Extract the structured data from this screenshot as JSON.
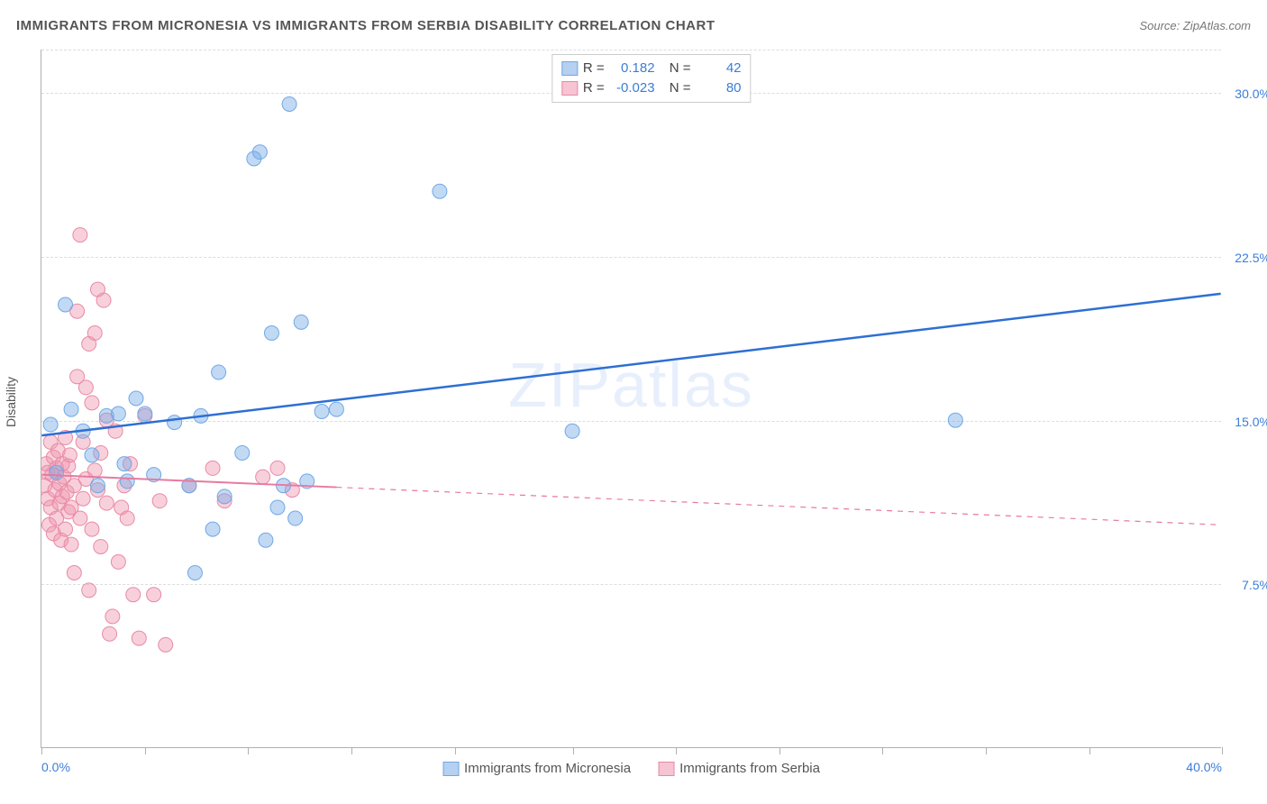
{
  "title": "IMMIGRANTS FROM MICRONESIA VS IMMIGRANTS FROM SERBIA DISABILITY CORRELATION CHART",
  "source": "Source: ZipAtlas.com",
  "ylabel": "Disability",
  "watermark": "ZIPatlas",
  "chart": {
    "type": "scatter",
    "xlim": [
      0,
      40
    ],
    "ylim": [
      0,
      32
    ],
    "x_ticks": [
      0,
      3.5,
      7,
      10.5,
      14,
      18,
      21.5,
      25,
      28.5,
      32,
      35.5,
      40
    ],
    "x_tick_labels": {
      "0": "0.0%",
      "40": "40.0%"
    },
    "y_gridlines": [
      7.5,
      15.0,
      22.5,
      30.0
    ],
    "y_tick_labels": [
      "7.5%",
      "15.0%",
      "22.5%",
      "30.0%"
    ],
    "background_color": "#ffffff",
    "grid_color": "#dddddd",
    "series": [
      {
        "name": "Immigrants from Micronesia",
        "color_fill": "rgba(120, 170, 230, 0.45)",
        "color_stroke": "#6fa8e6",
        "swatch_fill": "#b5d0f0",
        "swatch_border": "#6fa8e6",
        "marker_radius": 8,
        "r_value": "0.182",
        "n_value": "42",
        "trend": {
          "x1": 0,
          "y1": 14.3,
          "x2": 40,
          "y2": 20.8,
          "color": "#2d6fd4",
          "width": 2.5,
          "solid_until_x": 40
        },
        "points": [
          [
            0.3,
            14.8
          ],
          [
            0.5,
            12.6
          ],
          [
            0.8,
            20.3
          ],
          [
            1.0,
            15.5
          ],
          [
            1.4,
            14.5
          ],
          [
            1.7,
            13.4
          ],
          [
            1.9,
            12.0
          ],
          [
            2.2,
            15.2
          ],
          [
            2.6,
            15.3
          ],
          [
            2.9,
            12.2
          ],
          [
            2.8,
            13.0
          ],
          [
            3.2,
            16.0
          ],
          [
            3.5,
            15.3
          ],
          [
            3.8,
            12.5
          ],
          [
            4.5,
            14.9
          ],
          [
            5.0,
            12.0
          ],
          [
            5.2,
            8.0
          ],
          [
            5.4,
            15.2
          ],
          [
            5.8,
            10.0
          ],
          [
            6.0,
            17.2
          ],
          [
            6.2,
            11.5
          ],
          [
            6.8,
            13.5
          ],
          [
            7.2,
            27.0
          ],
          [
            7.4,
            27.3
          ],
          [
            7.6,
            9.5
          ],
          [
            7.8,
            19.0
          ],
          [
            8.0,
            11.0
          ],
          [
            8.2,
            12.0
          ],
          [
            8.4,
            29.5
          ],
          [
            8.6,
            10.5
          ],
          [
            8.8,
            19.5
          ],
          [
            9.0,
            12.2
          ],
          [
            9.5,
            15.4
          ],
          [
            10.0,
            15.5
          ],
          [
            13.5,
            25.5
          ],
          [
            18.0,
            14.5
          ],
          [
            31.0,
            15.0
          ]
        ]
      },
      {
        "name": "Immigrants from Serbia",
        "color_fill": "rgba(240, 150, 175, 0.45)",
        "color_stroke": "#e88aa5",
        "swatch_fill": "#f6c4d2",
        "swatch_border": "#e88aa5",
        "marker_radius": 8,
        "r_value": "-0.023",
        "n_value": "80",
        "trend": {
          "x1": 0,
          "y1": 12.5,
          "x2": 40,
          "y2": 10.2,
          "color": "#e879a0",
          "width": 2,
          "solid_until_x": 10
        },
        "points": [
          [
            0.1,
            12.0
          ],
          [
            0.15,
            13.0
          ],
          [
            0.2,
            11.4
          ],
          [
            0.2,
            12.6
          ],
          [
            0.25,
            10.2
          ],
          [
            0.3,
            14.0
          ],
          [
            0.3,
            11.0
          ],
          [
            0.35,
            12.5
          ],
          [
            0.4,
            13.3
          ],
          [
            0.4,
            9.8
          ],
          [
            0.45,
            11.8
          ],
          [
            0.5,
            12.8
          ],
          [
            0.5,
            10.5
          ],
          [
            0.55,
            13.6
          ],
          [
            0.6,
            11.2
          ],
          [
            0.6,
            12.1
          ],
          [
            0.65,
            9.5
          ],
          [
            0.7,
            13.0
          ],
          [
            0.7,
            11.5
          ],
          [
            0.75,
            12.4
          ],
          [
            0.8,
            10.0
          ],
          [
            0.8,
            14.2
          ],
          [
            0.85,
            11.7
          ],
          [
            0.9,
            12.9
          ],
          [
            0.9,
            10.8
          ],
          [
            0.95,
            13.4
          ],
          [
            1.0,
            11.0
          ],
          [
            1.0,
            9.3
          ],
          [
            1.1,
            12.0
          ],
          [
            1.1,
            8.0
          ],
          [
            1.2,
            17.0
          ],
          [
            1.2,
            20.0
          ],
          [
            1.3,
            23.5
          ],
          [
            1.3,
            10.5
          ],
          [
            1.4,
            14.0
          ],
          [
            1.4,
            11.4
          ],
          [
            1.5,
            16.5
          ],
          [
            1.5,
            12.3
          ],
          [
            1.6,
            18.5
          ],
          [
            1.6,
            7.2
          ],
          [
            1.7,
            15.8
          ],
          [
            1.7,
            10.0
          ],
          [
            1.8,
            19.0
          ],
          [
            1.8,
            12.7
          ],
          [
            1.9,
            21.0
          ],
          [
            1.9,
            11.8
          ],
          [
            2.0,
            13.5
          ],
          [
            2.0,
            9.2
          ],
          [
            2.1,
            20.5
          ],
          [
            2.2,
            15.0
          ],
          [
            2.2,
            11.2
          ],
          [
            2.3,
            5.2
          ],
          [
            2.4,
            6.0
          ],
          [
            2.5,
            14.5
          ],
          [
            2.6,
            8.5
          ],
          [
            2.7,
            11.0
          ],
          [
            2.8,
            12.0
          ],
          [
            2.9,
            10.5
          ],
          [
            3.0,
            13.0
          ],
          [
            3.1,
            7.0
          ],
          [
            3.3,
            5.0
          ],
          [
            3.5,
            15.2
          ],
          [
            3.8,
            7.0
          ],
          [
            4.0,
            11.3
          ],
          [
            4.2,
            4.7
          ],
          [
            5.0,
            12.0
          ],
          [
            5.8,
            12.8
          ],
          [
            6.2,
            11.3
          ],
          [
            7.5,
            12.4
          ],
          [
            8.0,
            12.8
          ],
          [
            8.5,
            11.8
          ]
        ]
      }
    ],
    "legend_labels": {
      "R": "R =",
      "N": "N ="
    }
  },
  "bottom_legend": [
    "Immigrants from Micronesia",
    "Immigrants from Serbia"
  ]
}
